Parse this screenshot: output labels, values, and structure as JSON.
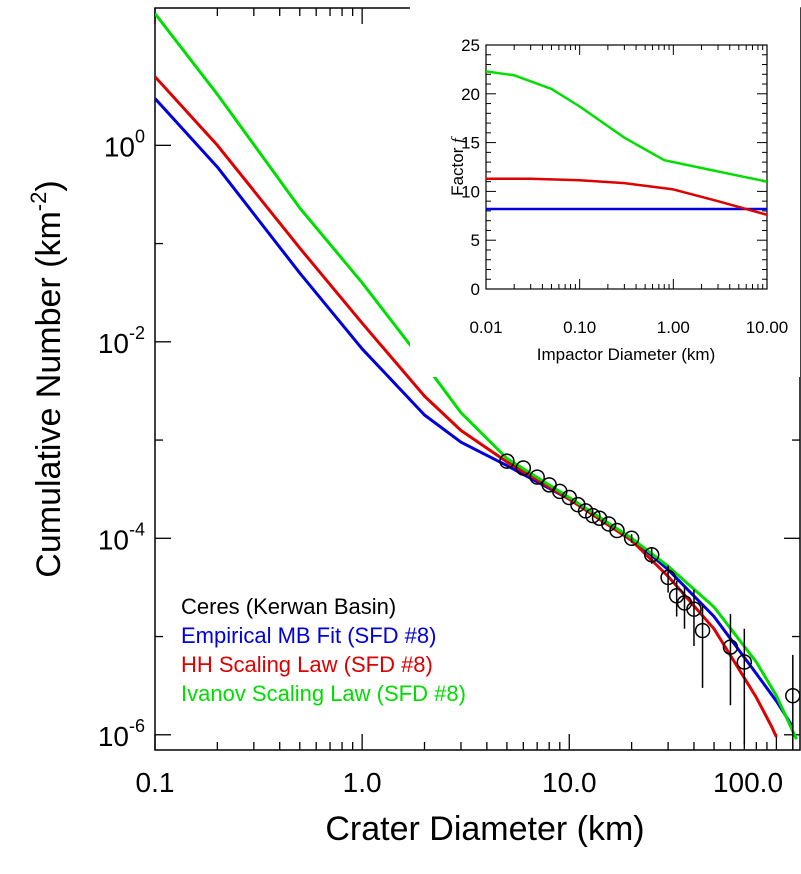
{
  "chart_data": [
    {
      "type": "line",
      "xlabel": "Crater Diameter (km)",
      "ylabel": "Cumulative Number (km",
      "ylabel_sup": "-2",
      "ylabel_close": ")",
      "xscale": "log",
      "yscale": "log",
      "xlim": [
        0.1,
        130
      ],
      "ylim": [
        7e-07,
        25
      ],
      "x_ticks": [
        0.1,
        1,
        10,
        100
      ],
      "x_tick_labels": [
        "0.1",
        "1.0",
        "10.0",
        "100.0"
      ],
      "y_ticks": [
        1,
        0.01,
        0.0001,
        1e-06
      ],
      "y_tick_labels": [
        {
          "base": "10",
          "exp": "0"
        },
        {
          "base": "10",
          "exp": "-2"
        },
        {
          "base": "10",
          "exp": "-4"
        },
        {
          "base": "10",
          "exp": "-6"
        }
      ],
      "legend": {
        "placement": "bottom-left",
        "entries": [
          {
            "label": "Ceres (Kerwan Basin)",
            "color": "#000000"
          },
          {
            "label": "Empirical MB Fit (SFD #8)",
            "color": "#0000dd"
          },
          {
            "label": "HH Scaling Law (SFD #8)",
            "color": "#dd0000"
          },
          {
            "label": "Ivanov Scaling Law (SFD #8)",
            "color": "#00dd00"
          }
        ]
      },
      "series": [
        {
          "name": "Empirical MB Fit (SFD #8)",
          "color": "#0000dd",
          "x": [
            0.1,
            0.2,
            0.5,
            1.0,
            2.0,
            3.0,
            5.0,
            10.0,
            20.0,
            30.0,
            50.0,
            80.0,
            100.0,
            120.0
          ],
          "y": [
            3.0,
            0.6,
            0.05,
            0.0085,
            0.0018,
            0.00095,
            0.00055,
            0.00025,
            0.0001,
            4.8e-05,
            1.6e-05,
            4.2e-06,
            2.2e-06,
            1.2e-06
          ]
        },
        {
          "name": "HH Scaling Law (SFD #8)",
          "color": "#dd0000",
          "x": [
            0.1,
            0.2,
            0.5,
            1.0,
            2.0,
            3.0,
            5.0,
            10.0,
            20.0,
            30.0,
            50.0,
            80.0,
            95.0,
            100.0
          ],
          "y": [
            5.0,
            1.0,
            0.09,
            0.0155,
            0.0028,
            0.00125,
            0.0006,
            0.00025,
            9.5e-05,
            4.1e-05,
            1.2e-05,
            2.4e-06,
            1.2e-06,
            9.5e-07
          ]
        },
        {
          "name": "Ivanov Scaling Law (SFD #8)",
          "color": "#00dd00",
          "x": [
            0.1,
            0.2,
            0.5,
            1.0,
            2.0,
            3.0,
            5.0,
            10.0,
            20.0,
            30.0,
            50.0,
            80.0,
            100.0,
            125.0
          ],
          "y": [
            22.0,
            3.3,
            0.23,
            0.04,
            0.006,
            0.0019,
            0.00065,
            0.00026,
            0.0001,
            5.2e-05,
            2e-05,
            5.5e-06,
            2.5e-06,
            9e-07
          ]
        }
      ],
      "observations": {
        "name": "Ceres (Kerwan Basin)",
        "color": "#000000",
        "points": [
          {
            "x": 5.0,
            "y": 0.00061
          },
          {
            "x": 6.0,
            "y": 0.00052
          },
          {
            "x": 7.0,
            "y": 0.00042
          },
          {
            "x": 8.0,
            "y": 0.00035
          },
          {
            "x": 9.0,
            "y": 0.0003
          },
          {
            "x": 10.0,
            "y": 0.00026
          },
          {
            "x": 11.0,
            "y": 0.00022
          },
          {
            "x": 12.0,
            "y": 0.00019
          },
          {
            "x": 13.0,
            "y": 0.00017
          },
          {
            "x": 14.0,
            "y": 0.00016
          },
          {
            "x": 15.5,
            "y": 0.00014
          },
          {
            "x": 17.0,
            "y": 0.00012
          },
          {
            "x": 20.0,
            "y": 0.0001,
            "err_lo": 9e-05,
            "err_hi": 0.00011
          },
          {
            "x": 25.0,
            "y": 6.8e-05,
            "err_lo": 5.5e-05,
            "err_hi": 8e-05
          },
          {
            "x": 30.0,
            "y": 4e-05,
            "err_lo": 2.8e-05,
            "err_hi": 5.3e-05
          },
          {
            "x": 33.0,
            "y": 2.6e-05,
            "err_lo": 1.6e-05,
            "err_hi": 3.7e-05
          },
          {
            "x": 36.0,
            "y": 2.2e-05,
            "err_lo": 1.2e-05,
            "err_hi": 3.2e-05
          },
          {
            "x": 40.0,
            "y": 1.9e-05,
            "err_lo": 8e-06,
            "err_hi": 3e-05
          },
          {
            "x": 44.0,
            "y": 1.15e-05,
            "err_lo": 3e-06,
            "err_hi": 2.1e-05
          },
          {
            "x": 60.0,
            "y": 7.8e-06,
            "err_lo": 2e-06,
            "err_hi": 1.7e-05
          },
          {
            "x": 70.0,
            "y": 5.5e-06,
            "err_lo": 8e-07,
            "err_hi": 1.2e-05
          },
          {
            "x": 120.0,
            "y": 2.5e-06,
            "err_lo": 7e-07,
            "err_hi": 6.5e-06
          }
        ]
      }
    },
    {
      "type": "line",
      "xlabel": "Impactor Diameter (km)",
      "ylabel": "Factor ",
      "ylabel_italic": "f",
      "xscale": "log",
      "yscale": "linear",
      "xlim": [
        0.01,
        10
      ],
      "ylim": [
        0,
        25
      ],
      "x_ticks": [
        0.01,
        0.1,
        1,
        10
      ],
      "x_tick_labels": [
        "0.01",
        "0.10",
        "1.00",
        "10.00"
      ],
      "y_ticks": [
        0,
        5,
        10,
        15,
        20,
        25
      ],
      "y_tick_labels": [
        "0",
        "5",
        "10",
        "15",
        "20",
        "25"
      ],
      "series": [
        {
          "color": "#0000dd",
          "x": [
            0.01,
            10
          ],
          "y": [
            8.2,
            8.2
          ]
        },
        {
          "color": "#dd0000",
          "x": [
            0.01,
            0.03,
            0.1,
            0.3,
            1.0,
            3.0,
            10.0
          ],
          "y": [
            11.3,
            11.3,
            11.15,
            10.85,
            10.2,
            9.0,
            7.6
          ]
        },
        {
          "color": "#00dd00",
          "x": [
            0.01,
            0.02,
            0.05,
            0.1,
            0.3,
            0.8,
            2.0,
            5.0,
            10.0
          ],
          "y": [
            22.3,
            21.9,
            20.5,
            18.7,
            15.5,
            13.2,
            12.4,
            11.6,
            11.0
          ]
        }
      ]
    }
  ]
}
